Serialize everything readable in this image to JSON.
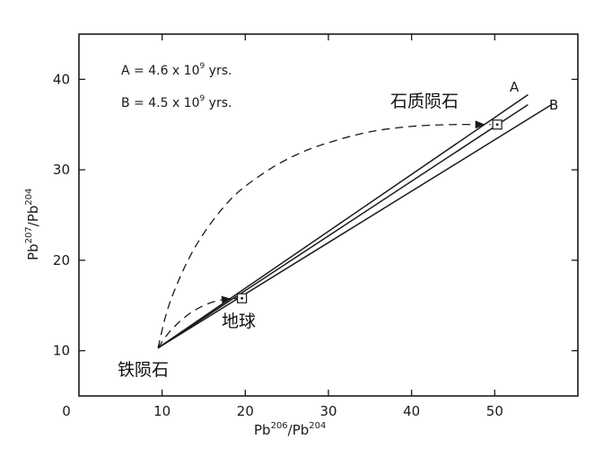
{
  "chart_data": {
    "type": "line",
    "xlabel": {
      "base1": "Pb",
      "sup1": "206",
      "sep": "/Pb",
      "sup2": "204"
    },
    "ylabel": {
      "base1": "Pb",
      "sup1": "207",
      "sep": "/Pb",
      "sup2": "204"
    },
    "xlim": [
      0,
      60
    ],
    "ylim": [
      5,
      45
    ],
    "x_ticks": [
      0,
      10,
      20,
      30,
      40,
      50
    ],
    "y_ticks": [
      10,
      20,
      30,
      40
    ],
    "grid": false,
    "legend": [
      {
        "label": "A",
        "prefix": "A = 4.6 x 10",
        "exp": "9",
        "suffix": " yrs."
      },
      {
        "label": "B",
        "prefix": "B = 4.5 x 10",
        "exp": "9",
        "suffix": " yrs."
      }
    ],
    "series": [
      {
        "name": "A",
        "style": "solid",
        "x": [
          9.5,
          54
        ],
        "y": [
          10.3,
          38.3
        ]
      },
      {
        "name": "",
        "style": "solid",
        "x": [
          9.5,
          54
        ],
        "y": [
          10.3,
          37.2
        ]
      },
      {
        "name": "B",
        "style": "solid",
        "x": [
          9.5,
          57
        ],
        "y": [
          10.3,
          37.3
        ]
      },
      {
        "name": "",
        "style": "dashed",
        "x": [
          9.5,
          11,
          14,
          18,
          22,
          26,
          30,
          35,
          40,
          45,
          49.5
        ],
        "y": [
          10.3,
          15.5,
          21.5,
          26.5,
          29.5,
          31.6,
          33.0,
          34.2,
          34.8,
          35.0,
          35.0
        ]
      },
      {
        "name": "",
        "style": "dashed",
        "x": [
          9.5,
          11,
          13,
          15,
          17,
          19
        ],
        "y": [
          10.3,
          12.2,
          13.9,
          15.0,
          15.6,
          15.8
        ]
      }
    ],
    "points": [
      {
        "label": "石质陨石",
        "x": 50.3,
        "y": 35.0
      },
      {
        "label": "地球",
        "x": 19.6,
        "y": 15.8
      },
      {
        "label": "铁陨石",
        "x": 9.5,
        "y": 10.3
      }
    ],
    "annotations": {
      "stony_meteorite": "石质陨石",
      "earth": "地球",
      "iron_meteorite": "铁陨石"
    }
  }
}
